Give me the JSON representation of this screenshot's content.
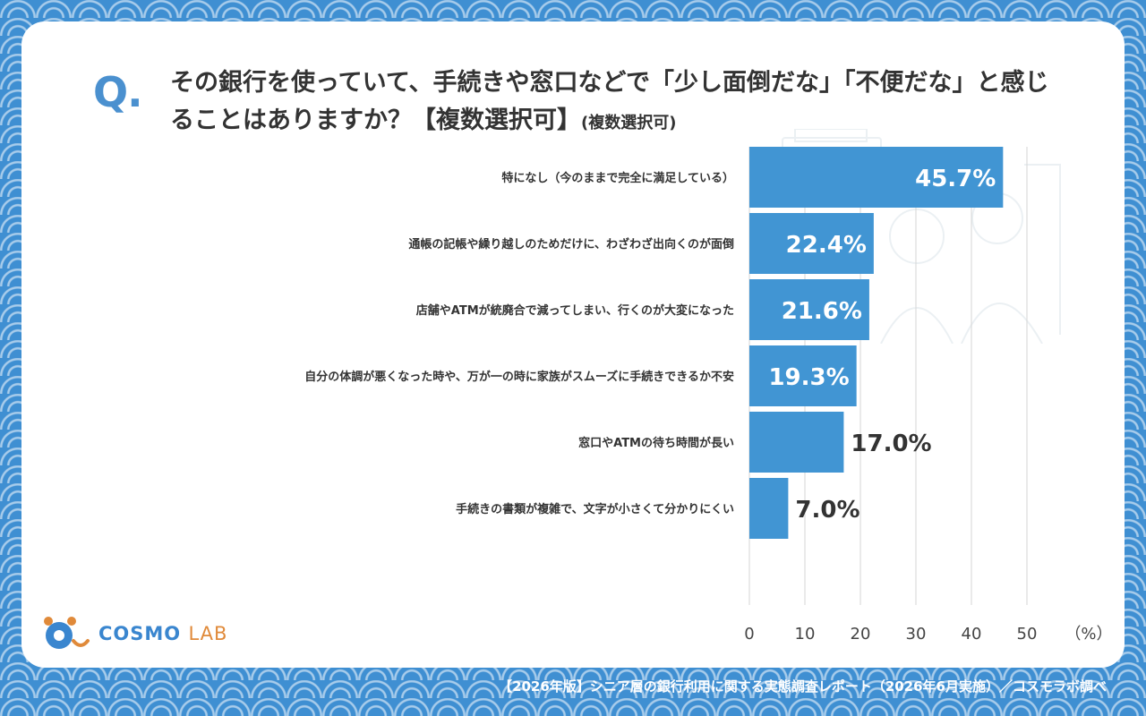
{
  "question": {
    "mark": "Q.",
    "title": "その銀行を使っていて、手続きや窓口などで「少し面倒だな」「不便だな」と感じることはありますか？【複数選択可】",
    "note": "(複数選択可)"
  },
  "chart_data": {
    "type": "bar",
    "orientation": "horizontal",
    "categories": [
      "特になし（今のままで完全に満足している）",
      "通帳の記帳や繰り越しのためだけに、わざわざ出向くのが面倒",
      "店舗やATMが統廃合で減ってしまい、行くのが大変になった",
      "自分の体調が悪くなった時や、万が一の時に家族がスムーズに手続きできるか不安",
      "窓口やATMの待ち時間が長い",
      "手続きの書類が複雑で、文字が小さくて分かりにくい"
    ],
    "values": [
      45.7,
      22.4,
      21.6,
      19.3,
      17.0,
      7.0
    ],
    "value_labels": [
      "45.7%",
      "22.4%",
      "21.6%",
      "19.3%",
      "17.0%",
      "7.0%"
    ],
    "xlim": [
      0,
      50
    ],
    "xticks": [
      0,
      10,
      20,
      30,
      40,
      50
    ],
    "x_unit": "（%）",
    "grid": true,
    "bar_color": "#4195d3"
  },
  "logo": {
    "primary": "COSMO",
    "secondary": "LAB"
  },
  "footer": {
    "text": "【2026年版】シニア層の銀行利用に関する実態調査レポート（2026年6月実施）／コスモラボ調べ"
  }
}
